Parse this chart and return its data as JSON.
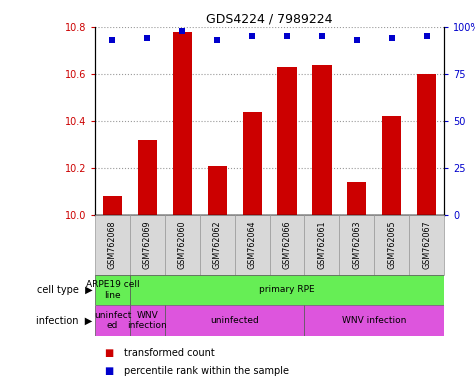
{
  "title": "GDS4224 / 7989224",
  "samples": [
    "GSM762068",
    "GSM762069",
    "GSM762060",
    "GSM762062",
    "GSM762064",
    "GSM762066",
    "GSM762061",
    "GSM762063",
    "GSM762065",
    "GSM762067"
  ],
  "transformed_counts": [
    10.08,
    10.32,
    10.78,
    10.21,
    10.44,
    10.63,
    10.64,
    10.14,
    10.42,
    10.6
  ],
  "percentile_ranks": [
    93,
    94,
    98,
    93,
    95,
    95,
    95,
    93,
    94,
    95
  ],
  "bar_color": "#cc0000",
  "dot_color": "#0000cc",
  "ylim_left": [
    10.0,
    10.8
  ],
  "ylim_right": [
    0,
    100
  ],
  "yticks_left": [
    10,
    10.2,
    10.4,
    10.6,
    10.8
  ],
  "yticks_right": [
    0,
    25,
    50,
    75,
    100
  ],
  "ct_regions": [
    {
      "start": 0,
      "end": 0,
      "label": "ARPE19 cell\nline",
      "color": "#66ee55"
    },
    {
      "start": 1,
      "end": 9,
      "label": "primary RPE",
      "color": "#66ee55"
    }
  ],
  "inf_regions": [
    {
      "start": 0,
      "end": 0,
      "label": "uninfect\ned",
      "color": "#dd55dd"
    },
    {
      "start": 1,
      "end": 1,
      "label": "WNV\ninfection",
      "color": "#dd55dd"
    },
    {
      "start": 2,
      "end": 5,
      "label": "uninfected",
      "color": "#dd55dd"
    },
    {
      "start": 6,
      "end": 9,
      "label": "WNV infection",
      "color": "#dd55dd"
    }
  ],
  "legend_items": [
    {
      "label": "transformed count",
      "color": "#cc0000"
    },
    {
      "label": "percentile rank within the sample",
      "color": "#0000cc"
    }
  ],
  "sample_bg": "#d8d8d8",
  "sample_border": "#999999",
  "background_color": "#ffffff"
}
